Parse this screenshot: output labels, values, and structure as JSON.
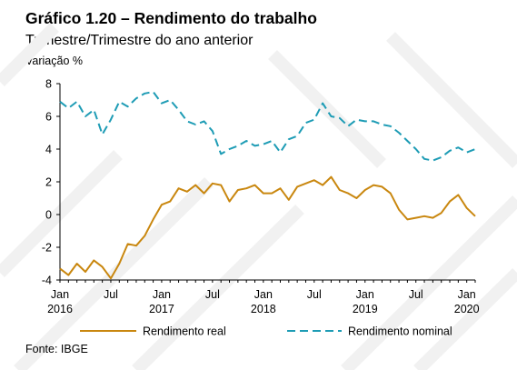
{
  "chart_data": {
    "type": "line",
    "title": "Gráfico 1.20 – Rendimento do trabalho",
    "subtitle": "Trimestre/Trimestre do ano anterior",
    "ylabel": "Variação %",
    "source": "Fonte: IBGE",
    "ylim": [
      -4,
      8
    ],
    "yticks": [
      "8",
      "6",
      "4",
      "2",
      "0",
      "-2",
      "-4"
    ],
    "xlim_months": [
      0,
      49
    ],
    "xticks": [
      {
        "m": 0,
        "label1": "Jan",
        "label2": "2016"
      },
      {
        "m": 6,
        "label1": "Jul",
        "label2": ""
      },
      {
        "m": 12,
        "label1": "Jan",
        "label2": "2017"
      },
      {
        "m": 18,
        "label1": "Jul",
        "label2": ""
      },
      {
        "m": 24,
        "label1": "Jan",
        "label2": "2018"
      },
      {
        "m": 30,
        "label1": "Jul",
        "label2": ""
      },
      {
        "m": 36,
        "label1": "Jan",
        "label2": "2019"
      },
      {
        "m": 42,
        "label1": "Jul",
        "label2": ""
      },
      {
        "m": 48,
        "label1": "Jan",
        "label2": "2020"
      }
    ],
    "series": [
      {
        "name": "Rendimento real",
        "color": "#C9870F",
        "style": "solid",
        "values": [
          -3.3,
          -3.7,
          -3.0,
          -3.5,
          -2.8,
          -3.2,
          -3.9,
          -3.0,
          -1.8,
          -1.9,
          -1.3,
          -0.3,
          0.6,
          0.8,
          1.6,
          1.4,
          1.8,
          1.3,
          1.9,
          1.8,
          0.8,
          1.5,
          1.6,
          1.8,
          1.3,
          1.3,
          1.6,
          0.9,
          1.7,
          1.9,
          2.1,
          1.8,
          2.3,
          1.5,
          1.3,
          1.0,
          1.5,
          1.8,
          1.7,
          1.3,
          0.3,
          -0.3,
          -0.2,
          -0.1,
          -0.2,
          0.1,
          0.8,
          1.2,
          0.4,
          -0.1
        ]
      },
      {
        "name": "Rendimento nominal",
        "color": "#1E9CB5",
        "style": "dashed",
        "values": [
          6.9,
          6.5,
          6.9,
          6.0,
          6.4,
          4.9,
          5.8,
          6.9,
          6.6,
          7.1,
          7.4,
          7.5,
          6.8,
          7.0,
          6.4,
          5.7,
          5.5,
          5.7,
          5.1,
          3.7,
          4.0,
          4.2,
          4.5,
          4.2,
          4.3,
          4.5,
          3.8,
          4.6,
          4.8,
          5.6,
          5.8,
          6.8,
          6.0,
          5.9,
          5.4,
          5.8,
          5.7,
          5.7,
          5.5,
          5.4,
          5.0,
          4.5,
          4.0,
          3.4,
          3.3,
          3.5,
          3.9,
          4.1,
          3.8,
          4.0
        ]
      }
    ],
    "legend": {
      "placement": "bottom"
    },
    "grid": false
  }
}
